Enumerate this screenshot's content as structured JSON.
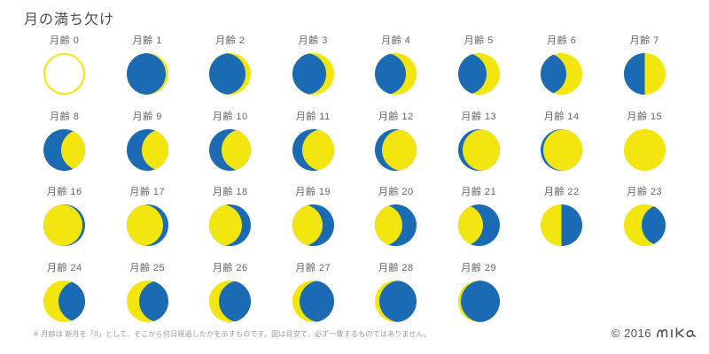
{
  "title": "月の満ち欠け",
  "footnote": "※ 月齢は 新月を「0」として、そこから何日経過したかを示すものです。図は目安で、必ず一致するものではありません。",
  "copyright": {
    "text": "© 2016",
    "signature": "mika"
  },
  "colors": {
    "moon_blue": "#1a6bb3",
    "moon_yellow": "#f3e50e",
    "new_moon_ring": "#f3e50e",
    "title_text": "#4d4d4d",
    "label_text": "#666666",
    "footnote_text": "#999999"
  },
  "moons": [
    {
      "age": 0,
      "label": "月齢 0",
      "type": "outline"
    },
    {
      "age": 1,
      "label": "月齢 1",
      "type": "overlay",
      "base": "yellow",
      "overlay": "blue",
      "shift": -3
    },
    {
      "age": 2,
      "label": "月齢 2",
      "type": "overlay",
      "base": "yellow",
      "overlay": "blue",
      "shift": -6
    },
    {
      "age": 3,
      "label": "月齢 3",
      "type": "overlay",
      "base": "yellow",
      "overlay": "blue",
      "shift": -9
    },
    {
      "age": 4,
      "label": "月齢 4",
      "type": "overlay",
      "base": "yellow",
      "overlay": "blue",
      "shift": -12
    },
    {
      "age": 5,
      "label": "月齢 5",
      "type": "overlay",
      "base": "yellow",
      "overlay": "blue",
      "shift": -15
    },
    {
      "age": 6,
      "label": "月齢 6",
      "type": "overlay",
      "base": "yellow",
      "overlay": "blue",
      "shift": -18
    },
    {
      "age": 7,
      "label": "月齢 7",
      "type": "split",
      "left": "blue",
      "right": "yellow"
    },
    {
      "age": 8,
      "label": "月齢 8",
      "type": "overlay",
      "base": "blue",
      "overlay": "yellow",
      "shift": 20
    },
    {
      "age": 9,
      "label": "月齢 9",
      "type": "overlay",
      "base": "blue",
      "overlay": "yellow",
      "shift": 17
    },
    {
      "age": 10,
      "label": "月齢 10",
      "type": "overlay",
      "base": "blue",
      "overlay": "yellow",
      "shift": 14
    },
    {
      "age": 11,
      "label": "月齢 11",
      "type": "overlay",
      "base": "blue",
      "overlay": "yellow",
      "shift": 11
    },
    {
      "age": 12,
      "label": "月齢 12",
      "type": "overlay",
      "base": "blue",
      "overlay": "yellow",
      "shift": 8
    },
    {
      "age": 13,
      "label": "月齢 13",
      "type": "overlay",
      "base": "blue",
      "overlay": "yellow",
      "shift": 5
    },
    {
      "age": 14,
      "label": "月齢 14",
      "type": "overlay",
      "base": "blue",
      "overlay": "yellow",
      "shift": 3
    },
    {
      "age": 15,
      "label": "月齢 15",
      "type": "full",
      "base": "yellow"
    },
    {
      "age": 16,
      "label": "月齢 16",
      "type": "overlay",
      "base": "blue",
      "overlay": "yellow",
      "shift": -3
    },
    {
      "age": 17,
      "label": "月齢 17",
      "type": "overlay",
      "base": "blue",
      "overlay": "yellow",
      "shift": -6
    },
    {
      "age": 18,
      "label": "月齢 18",
      "type": "overlay",
      "base": "blue",
      "overlay": "yellow",
      "shift": -10
    },
    {
      "age": 19,
      "label": "月齢 19",
      "type": "overlay",
      "base": "blue",
      "overlay": "yellow",
      "shift": -13
    },
    {
      "age": 20,
      "label": "月齢 20",
      "type": "overlay",
      "base": "blue",
      "overlay": "yellow",
      "shift": -16
    },
    {
      "age": 21,
      "label": "月齢 21",
      "type": "overlay",
      "base": "blue",
      "overlay": "yellow",
      "shift": -19
    },
    {
      "age": 22,
      "label": "月齢 22",
      "type": "split",
      "left": "yellow",
      "right": "blue"
    },
    {
      "age": 23,
      "label": "月齢 23",
      "type": "overlay",
      "base": "yellow",
      "overlay": "blue",
      "shift": 20
    },
    {
      "age": 24,
      "label": "月齢 24",
      "type": "overlay",
      "base": "yellow",
      "overlay": "blue",
      "shift": 17
    },
    {
      "age": 25,
      "label": "月齢 25",
      "type": "overlay",
      "base": "yellow",
      "overlay": "blue",
      "shift": 14
    },
    {
      "age": 26,
      "label": "月齢 26",
      "type": "overlay",
      "base": "yellow",
      "overlay": "blue",
      "shift": 11
    },
    {
      "age": 27,
      "label": "月齢 27",
      "type": "overlay",
      "base": "yellow",
      "overlay": "blue",
      "shift": 8
    },
    {
      "age": 28,
      "label": "月齢 28",
      "type": "overlay",
      "base": "yellow",
      "overlay": "blue",
      "shift": 5
    },
    {
      "age": 29,
      "label": "月齢 29",
      "type": "overlay",
      "base": "yellow",
      "overlay": "blue",
      "shift": 3
    }
  ]
}
